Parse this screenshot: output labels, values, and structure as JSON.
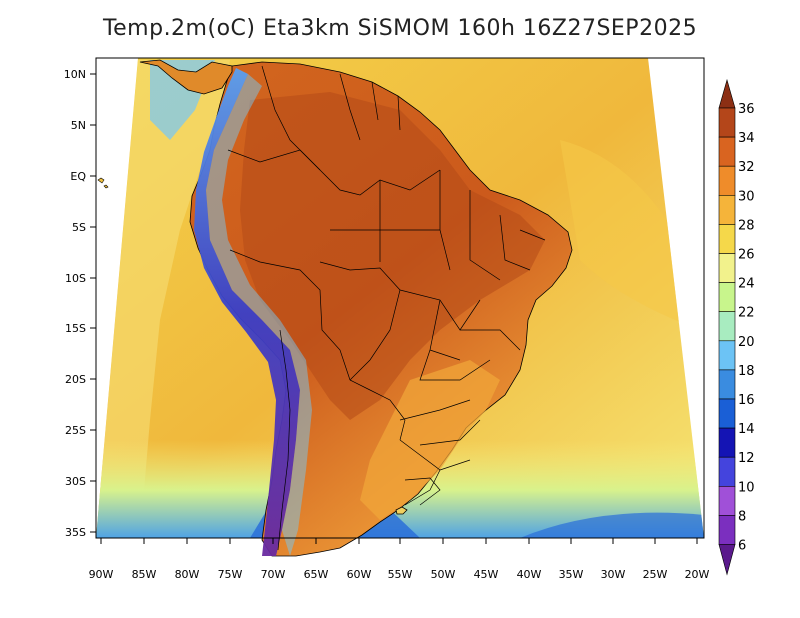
{
  "title": "Temp.2m(oC) Eta3km SiSMOM 160h 16Z27SEP2025",
  "lat_labels": [
    "10N",
    "5N",
    "EQ",
    "5S",
    "10S",
    "15S",
    "20S",
    "25S",
    "30S",
    "35S"
  ],
  "lon_labels": [
    "90W",
    "85W",
    "80W",
    "75W",
    "70W",
    "65W",
    "60W",
    "55W",
    "50W",
    "45W",
    "40W",
    "35W",
    "30W",
    "25W",
    "20W"
  ],
  "colorbar": {
    "levels": [
      6,
      8,
      10,
      12,
      14,
      16,
      18,
      20,
      22,
      24,
      26,
      28,
      30,
      32,
      34,
      36
    ],
    "colors": [
      "#5a1a8c",
      "#7b2fbf",
      "#a050d8",
      "#4444dd",
      "#1414b4",
      "#1a5fd6",
      "#3a8ce0",
      "#6cc3f5",
      "#a8ecc0",
      "#c8f58c",
      "#f2f28c",
      "#f5d84a",
      "#f5b43a",
      "#ef8c2a",
      "#d96420",
      "#b4461a",
      "#8c2f14"
    ]
  },
  "colors": {
    "ocean_warm": "#f0c040",
    "ocean_cool": "#f5e070",
    "land_hot": "#c85a1e",
    "land_warm": "#e07a28",
    "andes_cold": "#3a50c8",
    "andes_coldest": "#6a2aa0",
    "border": "#000000"
  }
}
